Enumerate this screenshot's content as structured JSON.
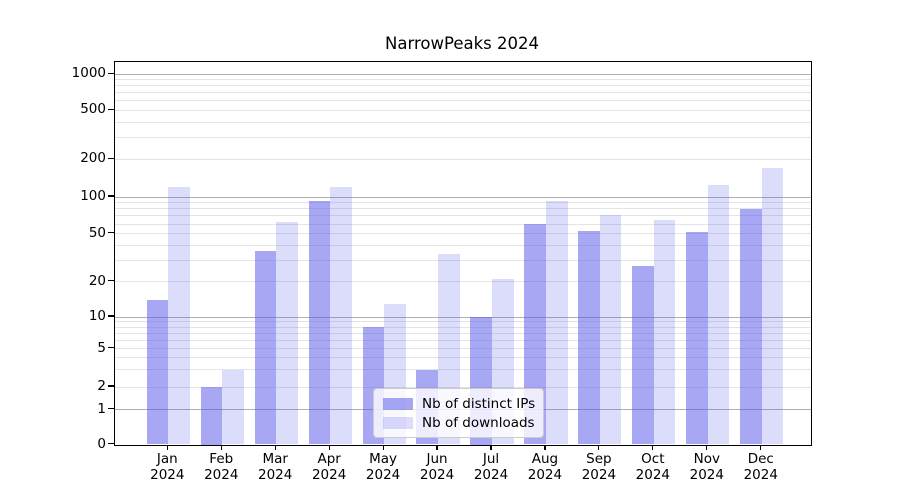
{
  "chart_data": {
    "type": "bar",
    "title": "NarrowPeaks 2024",
    "categories": [
      "Jan",
      "Feb",
      "Mar",
      "Apr",
      "May",
      "Jun",
      "Jul",
      "Aug",
      "Sep",
      "Oct",
      "Nov",
      "Dec"
    ],
    "category_sublabel": "2024",
    "series": [
      {
        "name": "Nb of distinct IPs",
        "color": "rgba(79,79,234,0.5)",
        "values": [
          14,
          2,
          36,
          93,
          8,
          3,
          10,
          60,
          53,
          27,
          52,
          80
        ]
      },
      {
        "name": "Nb of downloads",
        "color": "rgba(79,79,234,0.2)",
        "values": [
          120,
          3,
          62,
          120,
          13,
          34,
          21,
          93,
          71,
          65,
          125,
          170
        ]
      }
    ],
    "y_ticks": [
      0,
      1,
      2,
      5,
      10,
      20,
      50,
      100,
      200,
      500,
      1000
    ],
    "y_scale": "symlog",
    "ylim": [
      0,
      1300
    ],
    "grid": true,
    "grid_major_ticks": [
      1,
      10,
      100,
      1000
    ],
    "grid_major_color": "#b0b0b0",
    "grid_minor_color": "#e4e4e4",
    "legend_position": "lower center",
    "xlabel": "",
    "ylabel": ""
  }
}
